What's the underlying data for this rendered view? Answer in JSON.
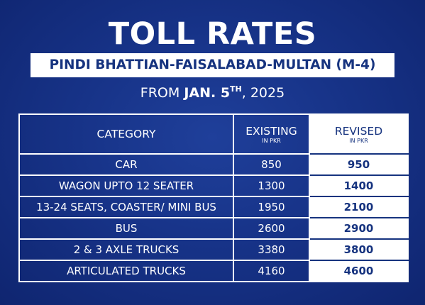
{
  "title": "TOLL RATES",
  "route": "PINDI BHATTIAN-FAISALABAD-MULTAN (M-4)",
  "effective": {
    "prefix": "FROM",
    "date_main": "JAN. 5",
    "date_suffix": "TH",
    "year": ", 2025"
  },
  "table": {
    "headers": {
      "category": "CATEGORY",
      "existing": "EXISTING",
      "existing_unit": "IN PKR",
      "revised": "REVISED",
      "revised_unit": "IN PKR"
    },
    "rows": [
      {
        "category": "CAR",
        "existing": "850",
        "revised": "950"
      },
      {
        "category": "WAGON UPTO 12 SEATER",
        "existing": "1300",
        "revised": "1400"
      },
      {
        "category": "13-24 SEATS, COASTER/ MINI BUS",
        "existing": "1950",
        "revised": "2100"
      },
      {
        "category": "BUS",
        "existing": "2600",
        "revised": "2900"
      },
      {
        "category": "2 & 3 AXLE TRUCKS",
        "existing": "3380",
        "revised": "3800"
      },
      {
        "category": "ARTICULATED TRUCKS",
        "existing": "4160",
        "revised": "4600"
      }
    ]
  },
  "colors": {
    "background": "#173388",
    "accent": "#16337f",
    "text": "#ffffff"
  }
}
